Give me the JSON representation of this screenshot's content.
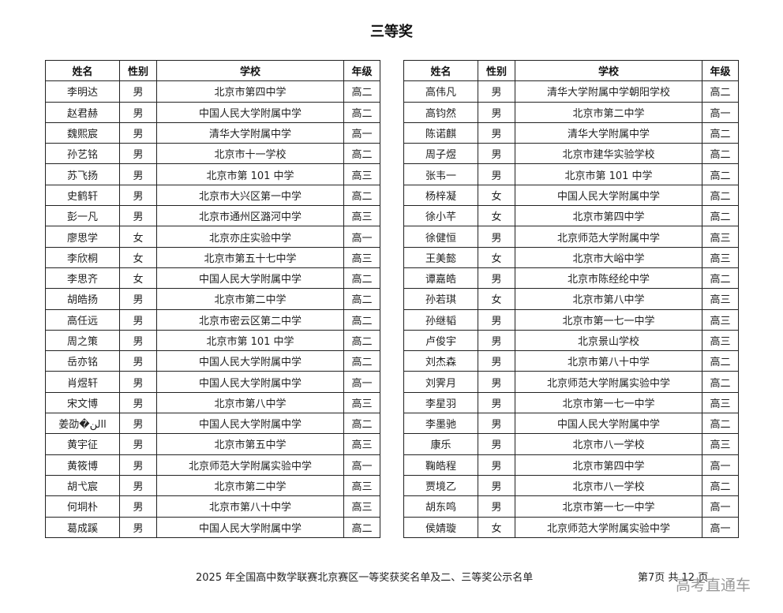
{
  "title": "三等奖",
  "headers": [
    "姓名",
    "性别",
    "学校",
    "年级"
  ],
  "left_rows": [
    [
      "李明达",
      "男",
      "北京市第四中学",
      "高二"
    ],
    [
      "赵君赫",
      "男",
      "中国人民大学附属中学",
      "高二"
    ],
    [
      "魏熙宸",
      "男",
      "清华大学附属中学",
      "高一"
    ],
    [
      "孙艺铭",
      "男",
      "北京市十一学校",
      "高二"
    ],
    [
      "苏飞扬",
      "男",
      "北京市第 101 中学",
      "高三"
    ],
    [
      "史鹤轩",
      "男",
      "北京市大兴区第一中学",
      "高二"
    ],
    [
      "彭一凡",
      "男",
      "北京市通州区潞河中学",
      "高三"
    ],
    [
      "廖思学",
      "女",
      "北京亦庄实验中学",
      "高一"
    ],
    [
      "李欣桐",
      "女",
      "北京市第五十七中学",
      "高三"
    ],
    [
      "李思齐",
      "女",
      "中国人民大学附属中学",
      "高二"
    ],
    [
      "胡皓扬",
      "男",
      "北京市第二中学",
      "高二"
    ],
    [
      "高任远",
      "男",
      "北京市密云区第二中学",
      "高二"
    ],
    [
      "周之策",
      "男",
      "北京市第 101 中学",
      "高二"
    ],
    [
      "岳亦铭",
      "男",
      "中国人民大学附属中学",
      "高二"
    ],
    [
      "肖煜轩",
      "男",
      "中国人民大学附属中学",
      "高一"
    ],
    [
      "宋文博",
      "男",
      "北京市第八中学",
      "高三"
    ],
    [
      "姜劭�االن",
      "男",
      "中国人民大学附属中学",
      "高二"
    ],
    [
      "黄宇征",
      "男",
      "北京市第五中学",
      "高三"
    ],
    [
      "黄筱博",
      "男",
      "北京师范大学附属实验中学",
      "高一"
    ],
    [
      "胡弋宸",
      "男",
      "北京市第二中学",
      "高三"
    ],
    [
      "何垌朴",
      "男",
      "北京市第八十中学",
      "高三"
    ],
    [
      "葛成蹊",
      "男",
      "中国人民大学附属中学",
      "高二"
    ]
  ],
  "right_rows": [
    [
      "高伟凡",
      "男",
      "清华大学附属中学朝阳学校",
      "高二"
    ],
    [
      "高钧然",
      "男",
      "北京市第二中学",
      "高一"
    ],
    [
      "陈诺麒",
      "男",
      "清华大学附属中学",
      "高二"
    ],
    [
      "周子煜",
      "男",
      "北京市建华实验学校",
      "高二"
    ],
    [
      "张韦一",
      "男",
      "北京市第 101 中学",
      "高二"
    ],
    [
      "杨梓凝",
      "女",
      "中国人民大学附属中学",
      "高二"
    ],
    [
      "徐小芊",
      "女",
      "北京市第四中学",
      "高二"
    ],
    [
      "徐健恒",
      "男",
      "北京师范大学附属中学",
      "高三"
    ],
    [
      "王美懿",
      "女",
      "北京市大峪中学",
      "高三"
    ],
    [
      "谭嘉皓",
      "男",
      "北京市陈经纶中学",
      "高二"
    ],
    [
      "孙若琪",
      "女",
      "北京市第八中学",
      "高三"
    ],
    [
      "孙继韬",
      "男",
      "北京市第一七一中学",
      "高三"
    ],
    [
      "卢俊宇",
      "男",
      "北京景山学校",
      "高三"
    ],
    [
      "刘杰森",
      "男",
      "北京市第八十中学",
      "高二"
    ],
    [
      "刘霁月",
      "男",
      "北京师范大学附属实验中学",
      "高二"
    ],
    [
      "李星羽",
      "男",
      "北京市第一七一中学",
      "高三"
    ],
    [
      "李墨驰",
      "男",
      "中国人民大学附属中学",
      "高二"
    ],
    [
      "康乐",
      "男",
      "北京市八一学校",
      "高三"
    ],
    [
      "鞠皓程",
      "男",
      "北京市第四中学",
      "高一"
    ],
    [
      "贾境乙",
      "男",
      "北京市八一学校",
      "高二"
    ],
    [
      "胡东鸣",
      "男",
      "北京市第一七一中学",
      "高一"
    ],
    [
      "侯婧璇",
      "女",
      "北京师范大学附属实验中学",
      "高一"
    ]
  ],
  "footer": "2025 年全国高中数学联赛北京赛区一等奖获奖名单及二、三等奖公示名单",
  "page_info": "第7页  共 12 页",
  "watermark": "高考直通车"
}
